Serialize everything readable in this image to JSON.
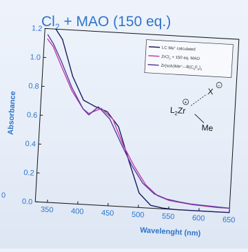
{
  "chart_data": {
    "type": "line",
    "title": "Cl₂ + MAO (150 eq.)",
    "title_parts": {
      "a": "Cl",
      "b": "2",
      "c": " + MAO (150 eq.)"
    },
    "xlabel": "Wavelenght (nm)",
    "ylabel": "Absorbance",
    "xlim": [
      330,
      650
    ],
    "ylim": [
      0,
      1.2
    ],
    "x_ticks": [
      350,
      400,
      450,
      500,
      550,
      600,
      650
    ],
    "y_ticks": [
      0.0,
      0.2,
      0.4,
      0.6,
      0.8,
      1.0,
      1.2
    ],
    "y_tick_labels": [
      "0.0",
      "0.2",
      "0.4",
      "0.6",
      "0.8",
      "1.0",
      "1.2"
    ],
    "grid": false,
    "legend_position": "top-right",
    "series": [
      {
        "name": "LC Me⁺ calculated",
        "color": "#1a1a5e",
        "x": [
          348,
          360,
          380,
          400,
          420,
          440,
          460,
          480,
          500,
          520,
          540,
          560,
          580,
          600,
          620,
          650
        ],
        "y": [
          1.24,
          1.13,
          0.88,
          0.72,
          0.68,
          0.65,
          0.55,
          0.32,
          0.1,
          0.02,
          0.005,
          0.0,
          0.0,
          0.0,
          0.0,
          0.0
        ]
      },
      {
        "name": "ZrCl₂ + 150 eq. MAO",
        "color": "#c23da8",
        "x": [
          335,
          345,
          360,
          380,
          400,
          410,
          430,
          450,
          470,
          490,
          510,
          530,
          550,
          570,
          590,
          610,
          630,
          650
        ],
        "y": [
          1.13,
          1.08,
          0.95,
          0.78,
          0.66,
          0.63,
          0.67,
          0.6,
          0.42,
          0.28,
          0.16,
          0.09,
          0.06,
          0.05,
          0.04,
          0.035,
          0.03,
          0.03
        ]
      },
      {
        "name": "Zr(solv)Me⁺—B(C₆F₅)₄",
        "color": "#5a3a9e",
        "x": [
          335,
          345,
          360,
          380,
          400,
          410,
          425,
          445,
          465,
          485,
          505,
          525,
          545,
          565,
          585,
          605,
          625,
          650
        ],
        "y": [
          1.16,
          1.1,
          0.98,
          0.8,
          0.66,
          0.62,
          0.68,
          0.6,
          0.44,
          0.29,
          0.17,
          0.1,
          0.07,
          0.055,
          0.045,
          0.04,
          0.035,
          0.03
        ]
      }
    ],
    "legend": [
      {
        "label": "LC Me⁺ calculated",
        "base": "LC Me",
        "sup": "+",
        "rest": " calculated",
        "color": "#1a1a5e"
      },
      {
        "label": "ZrCl₂ + 150 eq. MAO",
        "base": "ZrCl",
        "sub": "2",
        "rest": " + 150 eq. MAO",
        "color": "#c23da8"
      },
      {
        "label": "Zr(solv)Me⁺—B(C₆F₅)₄",
        "base": "Zr(solv)Me",
        "sup": "+",
        "rest": "—B(C",
        "sub2": "6",
        "rest2": "F",
        "sub3": "5",
        "rest3": ")",
        "sub4": "4",
        "color": "#5a3a9e"
      }
    ],
    "annotation_structure": {
      "l2zr": "L",
      "l2zr_sub": "2",
      "l2zr_rest": "Zr",
      "plus": "+",
      "x": "X",
      "minus": "−",
      "me": "Me"
    }
  },
  "left_edge_fragment": "0"
}
